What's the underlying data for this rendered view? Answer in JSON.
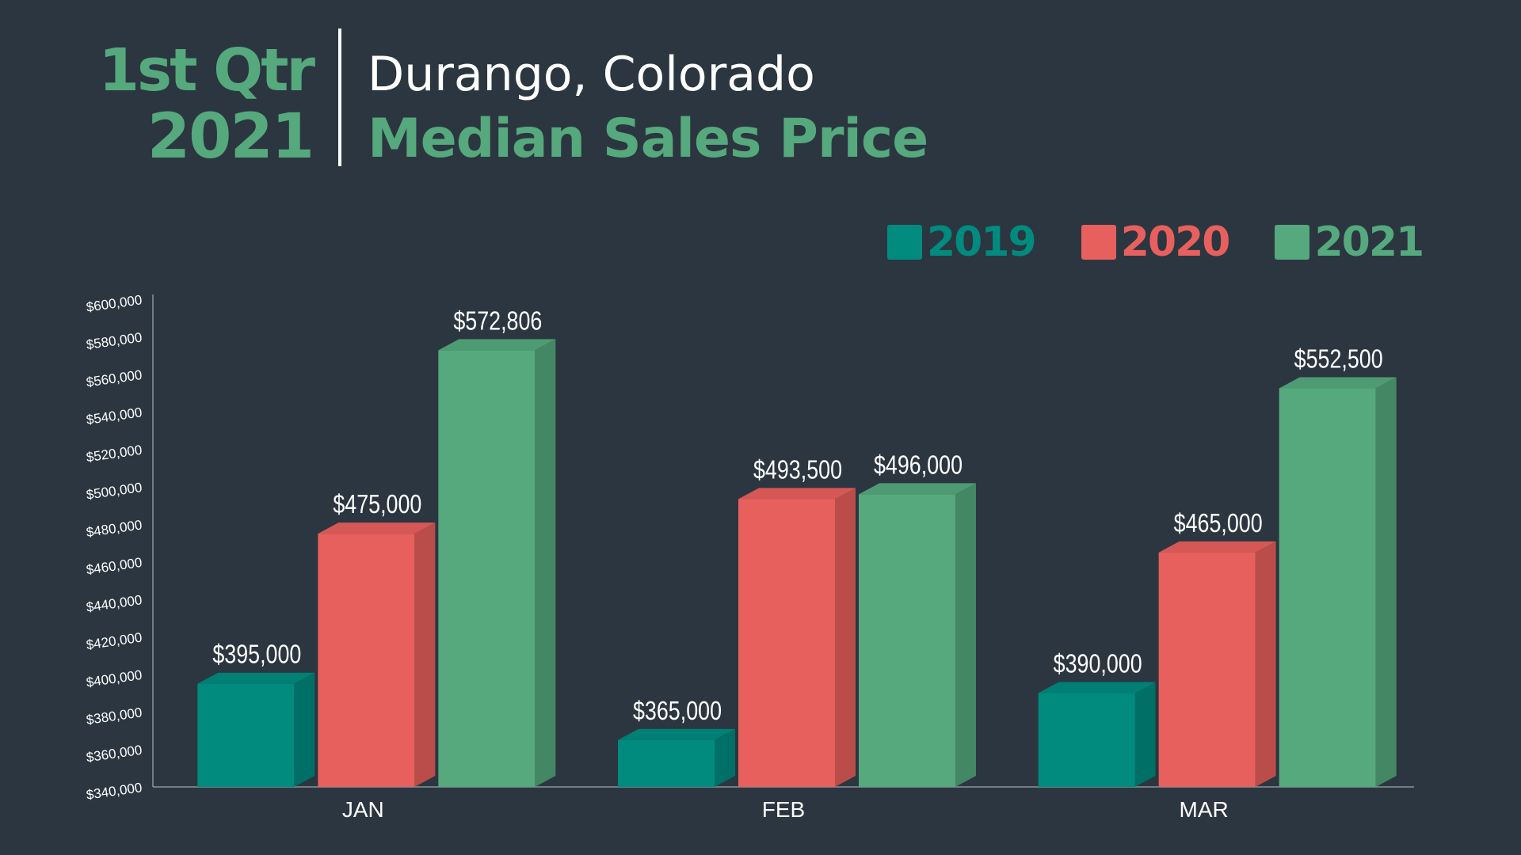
{
  "header": {
    "quarter_line1": "1st Qtr",
    "quarter_line2": "2021",
    "location": "Durango, Colorado",
    "title": "Median Sales Price"
  },
  "colors": {
    "background": "#2b3640",
    "accent_green": "#55a97d",
    "series_2019": "#008b7e",
    "series_2020": "#e8605d",
    "series_2021": "#55a97d",
    "text": "#ffffff"
  },
  "chart_data": {
    "type": "bar",
    "style": "3d-column",
    "title": "Median Sales Price",
    "categories": [
      "JAN",
      "FEB",
      "MAR"
    ],
    "series": [
      {
        "name": "2019",
        "values": [
          395000,
          365000,
          390000
        ],
        "labels": [
          "$395,000",
          "$365,000",
          "$390,000"
        ]
      },
      {
        "name": "2020",
        "values": [
          475000,
          493500,
          465000
        ],
        "labels": [
          "$475,000",
          "$493,500",
          "$465,000"
        ]
      },
      {
        "name": "2021",
        "values": [
          572806,
          496000,
          552500
        ],
        "labels": [
          "$572,806",
          "$496,000",
          "$552,500"
        ]
      }
    ],
    "ylim": [
      340000,
      600000
    ],
    "yticks": [
      340000,
      360000,
      380000,
      400000,
      420000,
      440000,
      460000,
      480000,
      500000,
      520000,
      540000,
      560000,
      580000,
      600000
    ],
    "ytick_labels": [
      "$340,000",
      "$360,000",
      "$380,000",
      "$400,000",
      "$420,000",
      "$440,000",
      "$460,000",
      "$480,000",
      "$500,000",
      "$520,000",
      "$540,000",
      "$560,000",
      "$580,000",
      "$600,000"
    ],
    "xlabel": "",
    "ylabel": "",
    "grid": false,
    "legend_position": "top-right"
  }
}
